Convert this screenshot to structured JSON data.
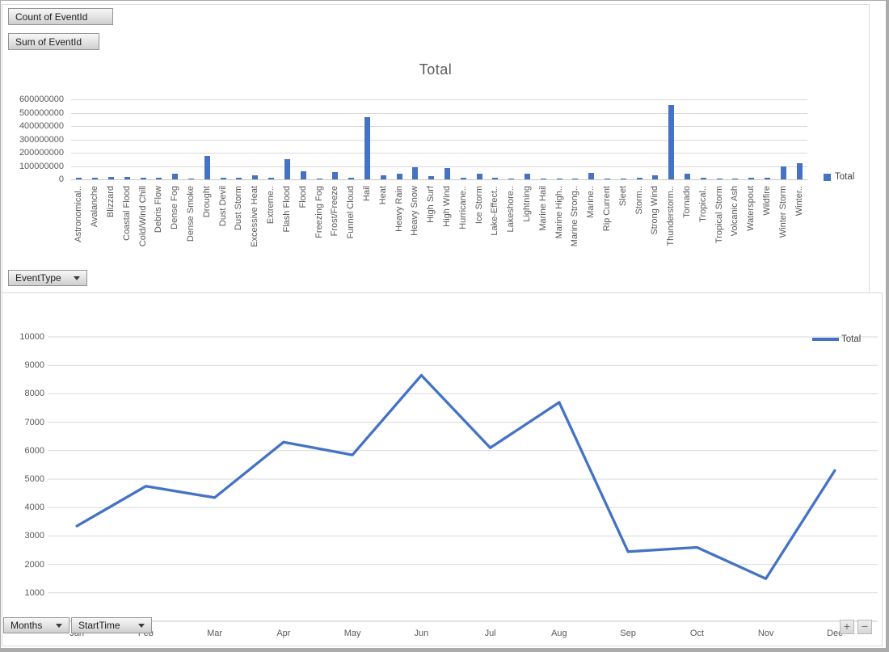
{
  "colors": {
    "series_blue": "#4472C4",
    "axis_text": "#595959",
    "gridline": "#D9D9D9"
  },
  "field_buttons": {
    "count_of_eventid": "Count of EventId",
    "sum_of_eventid": "Sum of EventId",
    "event_type": "EventType",
    "months": "Months",
    "start_time": "StartTime",
    "expand_label": "+",
    "collapse_label": "−"
  },
  "chart_data": [
    {
      "type": "bar",
      "title": "Total",
      "legend": [
        "Total"
      ],
      "legend_position": "right",
      "grid": true,
      "ylim": [
        0,
        600000000
      ],
      "ytick_interval": 100000000,
      "yticks": [
        "600000000",
        "500000000",
        "400000000",
        "300000000",
        "200000000",
        "100000000",
        "0"
      ],
      "categories": [
        "Astronomical..",
        "Avalanche",
        "Blizzard",
        "Coastal Flood",
        "Cold/Wind Chill",
        "Debris Flow",
        "Dense Fog",
        "Dense Smoke",
        "Drought",
        "Dust Devil",
        "Dust Storm",
        "Excessive Heat",
        "Extreme..",
        "Flash Flood",
        "Flood",
        "Freezing Fog",
        "Frost/Freeze",
        "Funnel Cloud",
        "Hail",
        "Heat",
        "Heavy Rain",
        "Heavy Snow",
        "High Surf",
        "High Wind",
        "Hurricane..",
        "Ice Storm",
        "Lake-Effect..",
        "Lakeshore..",
        "Lightning",
        "Marine Hail",
        "Marine High..",
        "Marine Strong..",
        "Marine..",
        "Rip Current",
        "Sleet",
        "Storm..",
        "Strong Wind",
        "Thunderstorm..",
        "Tornado",
        "Tropical..",
        "Tropical Storm",
        "Volcanic Ash",
        "Waterspout",
        "Wildfire",
        "Winter Storm",
        "Winter.."
      ],
      "values": [
        10000000,
        10000000,
        16000000,
        16000000,
        10000000,
        10000000,
        44000000,
        8000000,
        178000000,
        10000000,
        10000000,
        30000000,
        10000000,
        150000000,
        62000000,
        8000000,
        56000000,
        10000000,
        470000000,
        30000000,
        40000000,
        90000000,
        24000000,
        85000000,
        10000000,
        45000000,
        10000000,
        8000000,
        40000000,
        6000000,
        6000000,
        5000000,
        48000000,
        5000000,
        8000000,
        10000000,
        30000000,
        555000000,
        45000000,
        10000000,
        8000000,
        4000000,
        12000000,
        15000000,
        100000000,
        120000000
      ]
    },
    {
      "type": "line",
      "title": "",
      "legend": [
        "Total"
      ],
      "legend_position": "top-right",
      "grid": true,
      "ylim": [
        0,
        10000
      ],
      "ytick_interval": 1000,
      "yticks": [
        "10000",
        "9000",
        "8000",
        "7000",
        "6000",
        "5000",
        "4000",
        "3000",
        "2000",
        "1000",
        "0"
      ],
      "categories": [
        "Jan",
        "Feb",
        "Mar",
        "Apr",
        "May",
        "Jun",
        "Jul",
        "Aug",
        "Sep",
        "Oct",
        "Nov",
        "Dec"
      ],
      "values": [
        3350,
        4750,
        4350,
        6300,
        5850,
        8650,
        6100,
        7700,
        2450,
        2600,
        1500,
        5300
      ]
    }
  ]
}
